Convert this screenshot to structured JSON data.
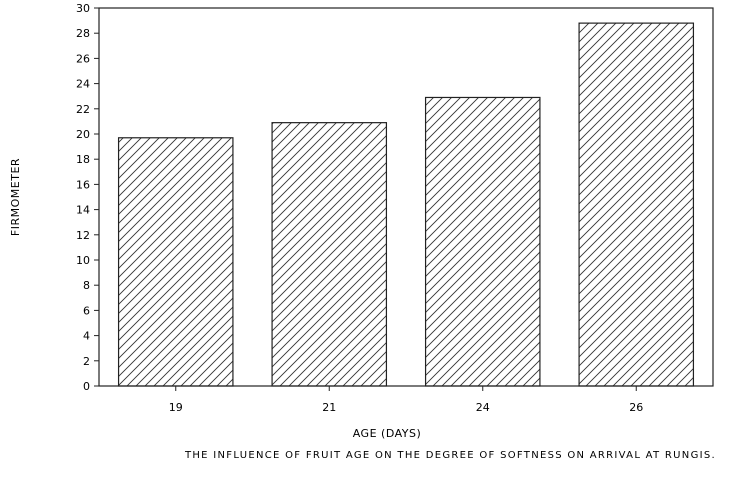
{
  "chart_data": {
    "type": "bar",
    "categories": [
      "19",
      "21",
      "24",
      "26"
    ],
    "values": [
      19.7,
      20.9,
      22.9,
      28.8
    ],
    "title": "",
    "caption": "THE INFLUENCE OF FRUIT AGE ON THE DEGREE OF SOFTNESS ON ARRIVAL AT RUNGIS.",
    "xlabel": "AGE (DAYS)",
    "ylabel": "FIRMOMETER",
    "ylim": [
      0,
      30
    ],
    "yticks": [
      0,
      2,
      4,
      6,
      8,
      10,
      12,
      14,
      16,
      18,
      20,
      22,
      24,
      26,
      28,
      30
    ],
    "grid": false,
    "bar_fill": "diagonal-hatch",
    "colors": {
      "bar_stroke": "#222222",
      "hatch": "#333333",
      "background": "#ffffff"
    }
  }
}
